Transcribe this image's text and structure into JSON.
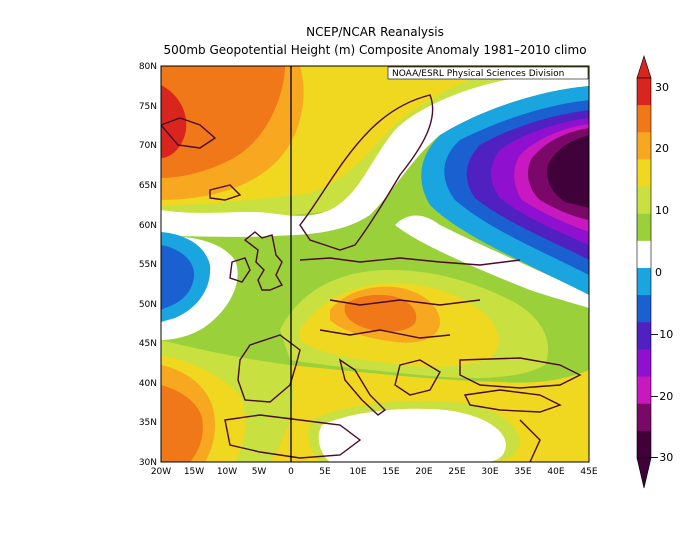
{
  "header": {
    "title": "NCEP/NCAR Reanalysis",
    "subtitle": "500mb Geopotential Height (m) Composite Anomaly 1981–2010 climo",
    "credit": "NOAA/ESRL Physical Sciences Division"
  },
  "map": {
    "lat_labels": [
      "80N",
      "75N",
      "70N",
      "65N",
      "60N",
      "55N",
      "50N",
      "45N",
      "40N",
      "35N",
      "30N"
    ],
    "lon_labels": [
      "20W",
      "15W",
      "10W",
      "5W",
      "0",
      "5E",
      "10E",
      "15E",
      "20E",
      "25E",
      "30E",
      "35E",
      "40E",
      "45E"
    ],
    "field_summary": [
      {
        "region": "North Atlantic / Greenland Sea (near 73N 20W)",
        "anomaly_m": 30
      },
      {
        "region": "Central Europe (near 50N 15E)",
        "anomaly_m": 20
      },
      {
        "region": "Northwest Russia (near 65N 45E)",
        "anomaly_m": -30
      },
      {
        "region": "Atlantic off Ireland (near 55N 20W)",
        "anomaly_m": -10
      },
      {
        "region": "Atlantic off Morocco (near 35N 18W)",
        "anomaly_m": 25
      }
    ]
  },
  "colorbar": {
    "labels": [
      "30",
      "20",
      "10",
      "0",
      "−10",
      "−20",
      "−30"
    ],
    "colors": [
      "#d8261e",
      "#f07818",
      "#f8a820",
      "#f0d820",
      "#c8e040",
      "#9ad03a",
      "#ffffff",
      "#1aa4e0",
      "#1a60d0",
      "#5020c0",
      "#9010d0",
      "#c818c0",
      "#7a0868",
      "#40003a"
    ]
  }
}
